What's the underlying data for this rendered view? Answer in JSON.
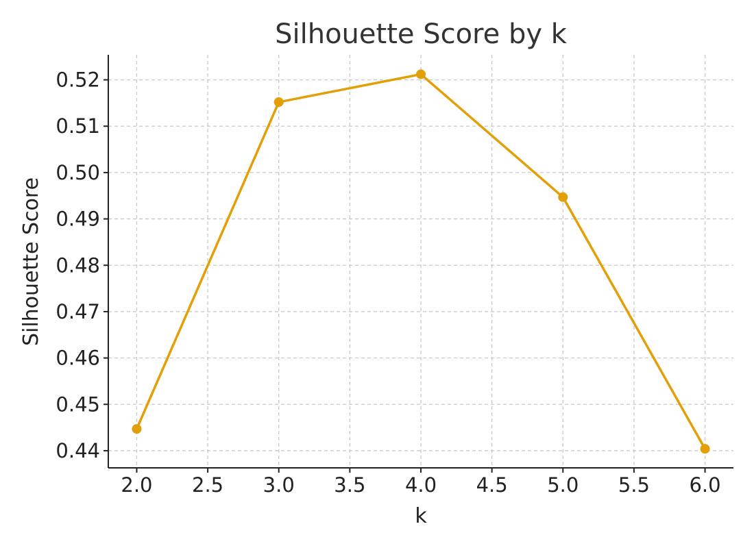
{
  "chart_data": {
    "type": "line",
    "title": "Silhouette Score by k",
    "xlabel": "k",
    "ylabel": "Silhouette Score",
    "x": [
      2,
      3,
      4,
      5,
      6
    ],
    "series": [
      {
        "values": [
          0.4447,
          0.5152,
          0.5212,
          0.4947,
          0.4404
        ],
        "color": "#e39f07"
      }
    ],
    "xlim": [
      1.8,
      6.2
    ],
    "ylim": [
      0.4363,
      0.5254
    ],
    "xticks": [
      2.0,
      2.5,
      3.0,
      3.5,
      4.0,
      4.5,
      5.0,
      5.5,
      6.0
    ],
    "xtick_labels": [
      "2.0",
      "2.5",
      "3.0",
      "3.5",
      "4.0",
      "4.5",
      "5.0",
      "5.5",
      "6.0"
    ],
    "yticks": [
      0.44,
      0.45,
      0.46,
      0.47,
      0.48,
      0.49,
      0.5,
      0.51,
      0.52
    ],
    "ytick_labels": [
      "0.44",
      "0.45",
      "0.46",
      "0.47",
      "0.48",
      "0.49",
      "0.50",
      "0.51",
      "0.52"
    ],
    "grid": true,
    "marker": "circle",
    "spines": "left-bottom"
  }
}
